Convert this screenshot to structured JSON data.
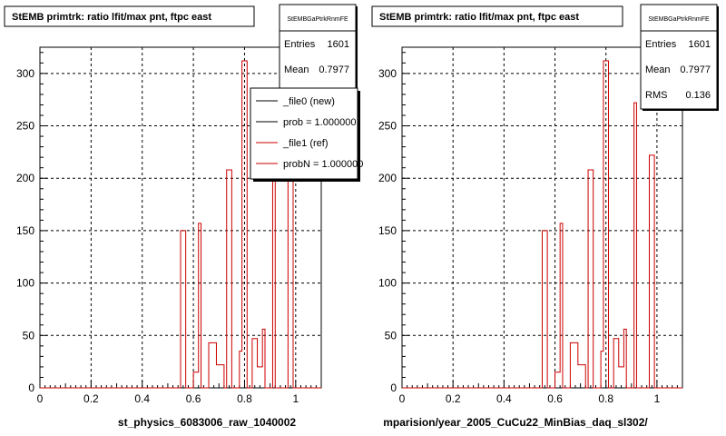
{
  "chart_data": [
    {
      "type": "bar",
      "title": "StEMB primtrk: ratio lfit/max pnt, ftpc east",
      "xlabel": "st_physics_6083006_raw_1040002",
      "ylabel": "",
      "xlim": [
        0,
        1.1
      ],
      "ylim": [
        0,
        325
      ],
      "x_ticks": [
        "0",
        "0.2",
        "0.4",
        "0.6",
        "0.8",
        "1"
      ],
      "y_ticks": [
        "0",
        "50",
        "100",
        "150",
        "200",
        "250",
        "300"
      ],
      "grid": true,
      "stats": {
        "title": "StEMBGaPtrkRnmFE",
        "entries_label": "Entries",
        "entries": "1601",
        "mean_label": "Mean",
        "mean": "0.7977"
      },
      "legend": {
        "placement": "top-right",
        "items": [
          {
            "label": "_file0 (new)",
            "color": "#000000"
          },
          {
            "label": "prob = 1.000000",
            "color": "#000000"
          },
          {
            "label": "_file1 (ref)",
            "color": "#cc0000"
          },
          {
            "label": "probN = 1.000000",
            "color": "#cc0000"
          }
        ]
      },
      "series": [
        {
          "color": "#cc0000",
          "bin_edges": [
            0.0,
            0.55,
            0.57,
            0.6,
            0.62,
            0.63,
            0.66,
            0.69,
            0.72,
            0.73,
            0.75,
            0.78,
            0.79,
            0.81,
            0.83,
            0.85,
            0.87,
            0.88,
            0.91,
            0.92,
            0.94,
            0.97,
            0.99,
            1.0,
            1.1
          ],
          "values": [
            0,
            150,
            0,
            15,
            157,
            0,
            43,
            22,
            0,
            208,
            0,
            35,
            312,
            0,
            47,
            20,
            56,
            0,
            272,
            0,
            0,
            222,
            0,
            0
          ]
        }
      ]
    },
    {
      "type": "bar",
      "title": "StEMB primtrk: ratio lfit/max pnt, ftpc east",
      "xlabel": "mparision/year_2005_CuCu22_MinBias_daq_sl302/",
      "ylabel": "",
      "xlim": [
        0,
        1.1
      ],
      "ylim": [
        0,
        325
      ],
      "x_ticks": [
        "0",
        "0.2",
        "0.4",
        "0.6",
        "0.8",
        "1"
      ],
      "y_ticks": [
        "0",
        "50",
        "100",
        "150",
        "200",
        "250",
        "300"
      ],
      "grid": true,
      "stats": {
        "title": "StEMBGaPtrkRnmFE",
        "entries_label": "Entries",
        "entries": "1601",
        "mean_label": "Mean",
        "mean": "0.7977",
        "rms_label": "RMS",
        "rms": "0.136"
      },
      "series": [
        {
          "color": "#cc0000",
          "bin_edges": [
            0.0,
            0.55,
            0.57,
            0.6,
            0.62,
            0.63,
            0.66,
            0.69,
            0.72,
            0.73,
            0.75,
            0.78,
            0.79,
            0.81,
            0.83,
            0.85,
            0.87,
            0.88,
            0.91,
            0.92,
            0.94,
            0.97,
            0.99,
            1.0,
            1.1
          ],
          "values": [
            0,
            150,
            0,
            15,
            157,
            0,
            43,
            22,
            0,
            208,
            0,
            35,
            312,
            0,
            47,
            20,
            56,
            0,
            272,
            0,
            0,
            222,
            0,
            0
          ]
        }
      ]
    }
  ]
}
